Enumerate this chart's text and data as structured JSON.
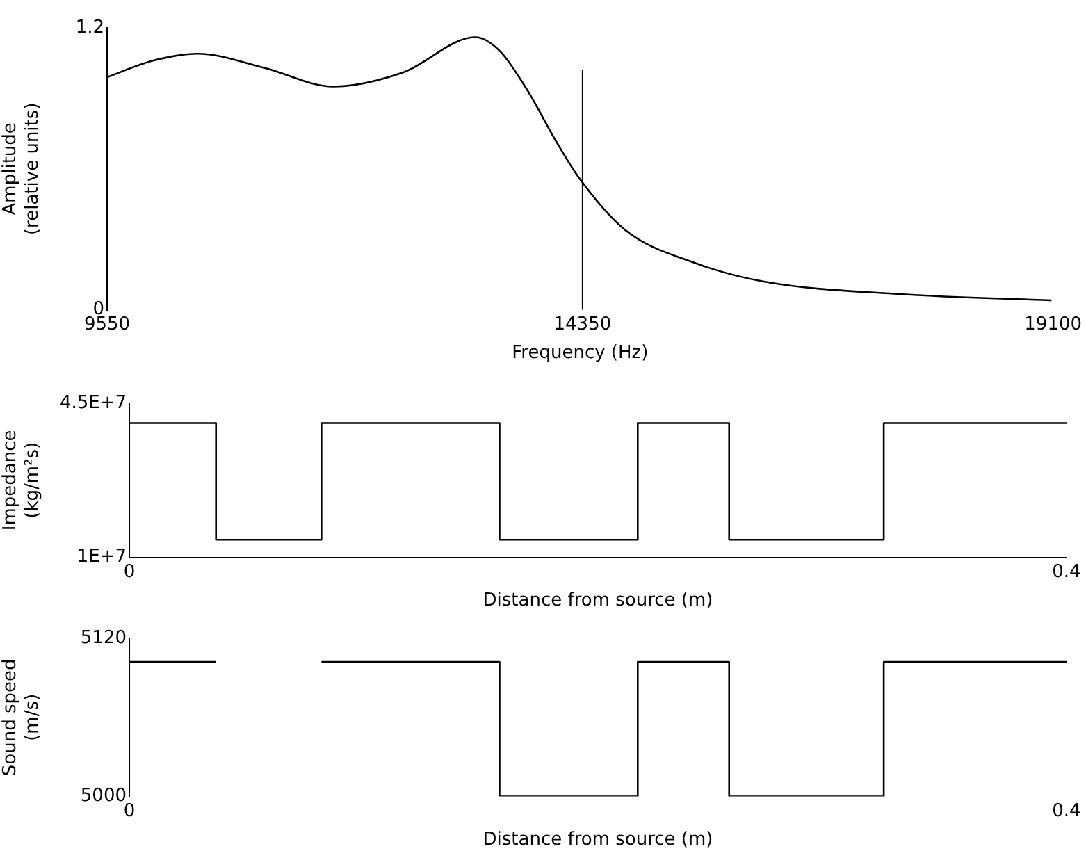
{
  "chart_data": [
    {
      "type": "line",
      "xlabel": "Frequency (Hz)",
      "ylabel": "Amplitude\n(relative units)",
      "x": [
        9550,
        10013,
        10461,
        11134,
        11836,
        12537,
        13266,
        13518,
        13799,
        14079,
        14317,
        14780,
        15481,
        16181,
        17583,
        19084
      ],
      "series": [
        {
          "color": "#000000",
          "values": [
            0.99,
            1.06,
            1.09,
            1.03,
            0.95,
            1.01,
            1.16,
            1.1,
            0.93,
            0.72,
            0.56,
            0.34,
            0.2,
            0.12,
            0.066,
            0.04
          ]
        }
      ],
      "xlim": [
        9550,
        19100
      ],
      "xticks": [
        9550,
        14350,
        19100
      ],
      "ylim": [
        0,
        1.2
      ],
      "yticks": [
        0,
        1.2
      ],
      "ref_lines": [
        {
          "axis": "x",
          "value": 14350,
          "color": "#000000"
        }
      ],
      "grid": false,
      "legend": false
    },
    {
      "type": "step",
      "xlabel": "Distance from source (m)",
      "ylabel": "Impedance\n(kg/m²s)",
      "x": [
        0,
        0.037,
        0.082,
        0.158,
        0.217,
        0.256,
        0.322,
        0.4
      ],
      "series": [
        {
          "color": "#000000",
          "values": [
            40500000,
            14000000,
            40500000,
            14000000,
            40500000,
            14000000,
            40500000,
            40500000
          ]
        }
      ],
      "xlim": [
        0,
        0.4
      ],
      "xticks": [
        0,
        0.4
      ],
      "ylim": [
        10000000,
        45000000
      ],
      "yticks": [
        {
          "value": 10000000,
          "label": "1E+7"
        },
        {
          "value": 45000000,
          "label": "4.5E+7"
        }
      ],
      "grid": false,
      "legend": false
    },
    {
      "type": "step",
      "xlabel": "Distance from source (m)",
      "ylabel": "Sound speed\n(m/s)",
      "x": [
        0,
        0.037,
        0.06,
        0.082,
        0.158,
        0.217,
        0.256,
        0.322,
        0.4
      ],
      "series": [
        {
          "color": "#000000",
          "values": [
            5102,
            5102,
            null,
            5102,
            5000,
            5102,
            5000,
            5102,
            5102
          ]
        }
      ],
      "xlim": [
        0,
        0.4
      ],
      "xticks": [
        0,
        0.4
      ],
      "ylim": [
        5000,
        5120
      ],
      "yticks": [
        5000,
        5120
      ],
      "grid": false,
      "legend": false
    }
  ]
}
